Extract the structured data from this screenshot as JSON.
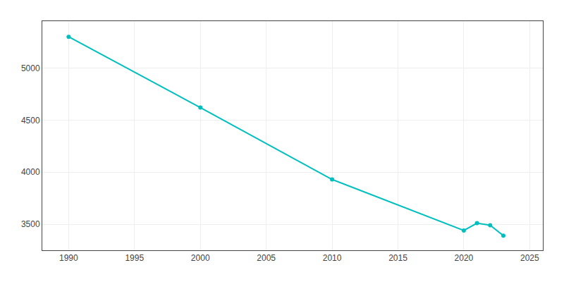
{
  "chart_data": {
    "type": "line",
    "x": [
      1990,
      2000,
      2010,
      2020,
      2021,
      2022,
      2023
    ],
    "values": [
      5300,
      4620,
      3930,
      3440,
      3510,
      3490,
      3390
    ],
    "color": "#00BFBF",
    "marker": "circle",
    "xlim": [
      1988,
      2026
    ],
    "ylim": [
      3250,
      5450
    ],
    "xticks": [
      1990,
      1995,
      2000,
      2005,
      2010,
      2015,
      2020,
      2025
    ],
    "yticks": [
      3500,
      4000,
      4500,
      5000
    ],
    "grid": true
  }
}
